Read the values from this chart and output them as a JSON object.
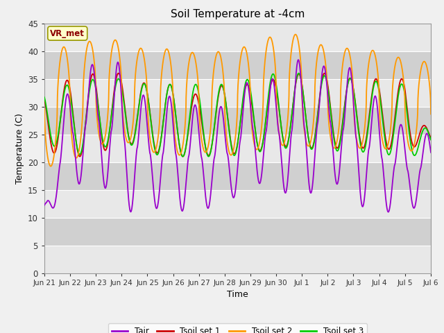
{
  "title": "Soil Temperature at -4cm",
  "xlabel": "Time",
  "ylabel": "Temperature (C)",
  "ylim": [
    0,
    45
  ],
  "yticks": [
    0,
    5,
    10,
    15,
    20,
    25,
    30,
    35,
    40,
    45
  ],
  "annotation_label": "VR_met",
  "colors": {
    "Tair": "#9900cc",
    "Tsoil1": "#cc0000",
    "Tsoil2": "#ff9900",
    "Tsoil3": "#00cc00"
  },
  "legend_labels": [
    "Tair",
    "Tsoil set 1",
    "Tsoil set 2",
    "Tsoil set 3"
  ],
  "n_days": 16,
  "samples_per_day": 144,
  "tair_min_vals": [
    10,
    15,
    18,
    10.5,
    12,
    11,
    11.5,
    12,
    16.5,
    15.5,
    12.5,
    18,
    12.5,
    11,
    11,
    13
  ],
  "tair_max_vals": [
    13,
    35,
    38,
    38,
    31,
    32,
    30,
    30,
    35,
    35,
    39,
    37,
    37,
    31,
    26,
    25
  ],
  "tsoil1_min": [
    22,
    21,
    21,
    24,
    22,
    21,
    21,
    21.5,
    21.5,
    23,
    22.5,
    22.5,
    22.5,
    22.5,
    22,
    24
  ],
  "tsoil1_max": [
    33,
    35,
    36,
    36,
    34,
    34,
    32,
    34,
    34,
    35,
    36,
    36,
    35,
    35,
    35,
    24.5
  ],
  "tsoil2_min": [
    19,
    20,
    23,
    24,
    22,
    21,
    22,
    21,
    22,
    23,
    23,
    22.5,
    22.5,
    22.5,
    22,
    22
  ],
  "tsoil2_max": [
    40,
    41,
    42,
    42,
    40,
    40.5,
    39.5,
    40,
    41,
    43,
    43,
    40.5,
    40.5,
    40,
    38.5,
    38
  ],
  "tsoil3_min": [
    24,
    21,
    22,
    24,
    21.5,
    21,
    21,
    21,
    21.5,
    22.5,
    22.5,
    22,
    22,
    21.5,
    21,
    21.5
  ],
  "tsoil3_max": [
    33,
    34,
    35,
    35,
    34,
    34,
    34,
    34,
    35,
    36,
    36,
    35.5,
    35,
    34.5,
    34,
    24.5
  ],
  "phase_air_hour": 14.5,
  "phase_soil2_hour": 12.0,
  "phase_soil1_hour": 15.0,
  "phase_soil3_hour": 15.0,
  "soil2_sharpness": 1.8,
  "tick_labels": [
    "Jun 21",
    "Jun 22",
    "Jun 23",
    "Jun 24",
    "Jun 25",
    "Jun 26",
    "Jun 27",
    "Jun 28",
    "Jun 29",
    "Jun 30",
    "Jul 1",
    "Jul 2",
    "Jul 3",
    "Jul 4",
    "Jul 5",
    "Jul 6"
  ],
  "band_colors": [
    "#e8e8e8",
    "#d0d0d0"
  ],
  "fig_bg": "#f0f0f0",
  "plot_bg": "#c8c8c8"
}
